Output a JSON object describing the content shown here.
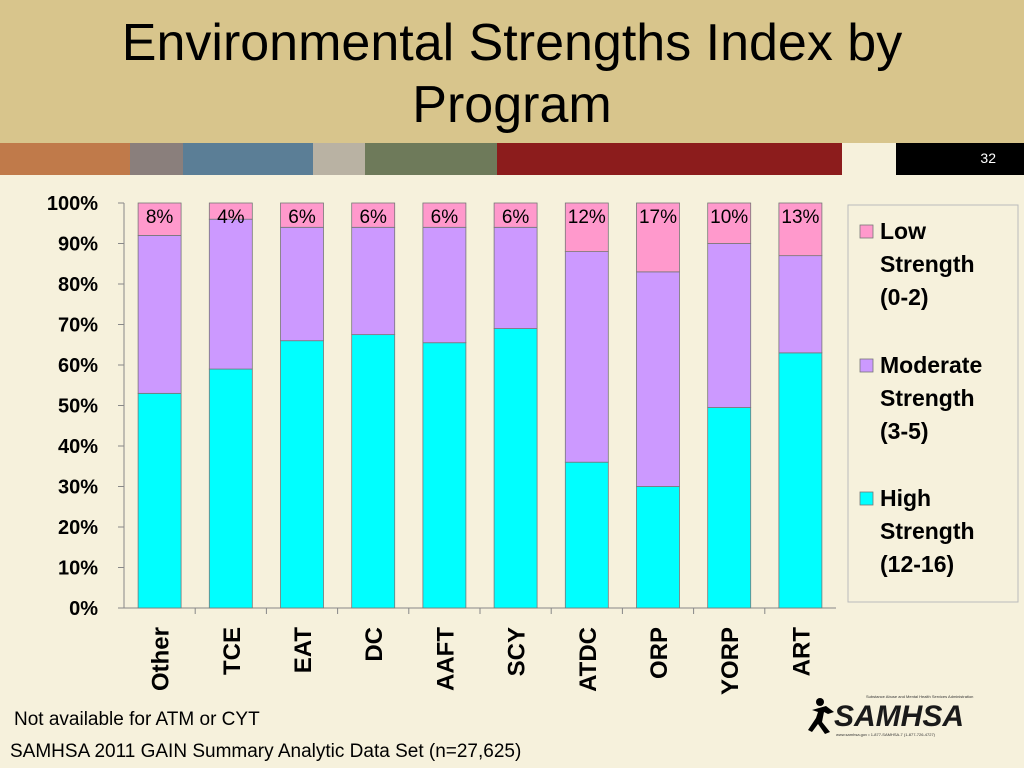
{
  "page": {
    "title_line1": "Environmental Strengths Index by",
    "title_line2": "Program",
    "slide_number": "32",
    "note": "Not available for ATM or CYT",
    "source": "SAMHSA 2011 GAIN Summary Analytic Data Set (n=27,625)",
    "logo_text": "SAMHSA",
    "logo_subtext": "Substance Abuse and Mental Health Services Administration",
    "logo_url_text": "www.samhsa.gov • 1-877-SAMHSA-7 (1-877-726-4727)"
  },
  "colors": {
    "header_bg": "#d8c58c",
    "band": [
      "#c07a4a",
      "#8a7f7c",
      "#5b7e96",
      "#b9b2a3",
      "#6e7a5a",
      "#8c1c1c",
      "#f6f1dc",
      "#000000"
    ],
    "high": "#00ffff",
    "moderate": "#cc99ff",
    "low": "#ff99cc"
  },
  "chart_data": {
    "type": "bar",
    "stacked": true,
    "percent": true,
    "categories": [
      "Other",
      "TCE",
      "EAT",
      "DC",
      "AAFT",
      "SCY",
      "ATDC",
      "ORP",
      "YORP",
      "ART"
    ],
    "series": [
      {
        "name": "High Strength (12-16)",
        "legend_lines": [
          "High",
          "Strength",
          "(12-16)"
        ],
        "values": [
          53,
          59,
          66,
          67.5,
          65.5,
          69,
          36,
          30,
          49.5,
          63
        ],
        "labels": null
      },
      {
        "name": "Moderate Strength (3-5)",
        "legend_lines": [
          "Moderate",
          "Strength",
          "(3-5)"
        ],
        "values": [
          39,
          37,
          28,
          26.5,
          28.5,
          25,
          52,
          53,
          40.5,
          24
        ],
        "labels": null
      },
      {
        "name": "Low Strength (0-2)",
        "legend_lines": [
          "Low",
          "Strength",
          "(0-2)"
        ],
        "values": [
          8,
          4,
          6,
          6,
          6,
          6,
          12,
          17,
          10,
          13
        ],
        "labels": [
          "8%",
          "4%",
          "6%",
          "6%",
          "6%",
          "6%",
          "12%",
          "17%",
          "10%",
          "13%"
        ]
      }
    ],
    "y_ticks": [
      "0%",
      "10%",
      "20%",
      "30%",
      "40%",
      "50%",
      "60%",
      "70%",
      "80%",
      "90%",
      "100%"
    ],
    "ylim": [
      0,
      100
    ],
    "grid": false,
    "legend_position": "right"
  }
}
